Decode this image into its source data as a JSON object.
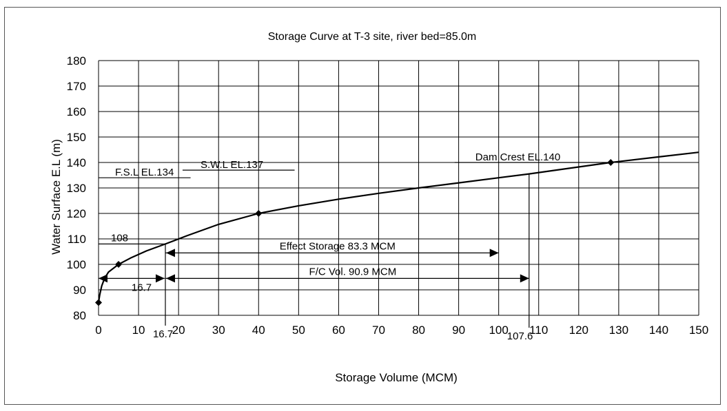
{
  "chart_data": {
    "type": "line",
    "title": "Storage Curve at T-3 site, river bed=85.0m",
    "xlabel": "Storage Volume (MCM)",
    "ylabel": "Water Surface E.L (m)",
    "xlim": [
      0,
      150
    ],
    "ylim": [
      80,
      180
    ],
    "x_ticks": [
      0,
      10,
      20,
      30,
      40,
      50,
      60,
      70,
      80,
      90,
      100,
      110,
      120,
      130,
      140,
      150
    ],
    "y_ticks": [
      80,
      90,
      100,
      110,
      120,
      130,
      140,
      150,
      160,
      170,
      180
    ],
    "grid": true,
    "legend": "none",
    "series": [
      {
        "x": [
          0,
          0.3,
          0.8,
          1.5,
          2.5,
          5,
          8,
          12,
          16.7,
          22,
          30,
          40,
          50,
          60,
          70,
          80,
          90,
          100,
          107.6,
          118,
          128,
          140,
          150
        ],
        "y": [
          85,
          88,
          91.5,
          94.5,
          97,
          100,
          102.5,
          105.3,
          108,
          111.2,
          115.7,
          120,
          123,
          125.6,
          127.9,
          130,
          132,
          134,
          135.5,
          137.8,
          140,
          142.2,
          144
        ],
        "markers": [
          {
            "x": 0,
            "y": 85
          },
          {
            "x": 5,
            "y": 100
          },
          {
            "x": 40,
            "y": 120
          },
          {
            "x": 128,
            "y": 140
          }
        ]
      }
    ],
    "annotations": {
      "fsl": {
        "text": "F.S.L EL.134",
        "y": 134,
        "x_from": 0,
        "x_to": 23
      },
      "swl": {
        "text": "S.W.L EL.137",
        "y": 137,
        "x_from": 21,
        "x_to": 49
      },
      "crest": {
        "text": "Dam Crest EL.140",
        "y": 140,
        "x_from": 89,
        "x_to": 128
      },
      "el108": {
        "text": "108",
        "y": 108,
        "x_from": 0,
        "x_to": 16.7
      },
      "effect": {
        "text": "Effect Storage 83.3 MCM",
        "y": 104.5,
        "x_from": 16.7,
        "x_to": 100
      },
      "fc": {
        "text": "F/C Vol. 90.9 MCM",
        "y": 94.5,
        "x_from": 16.7,
        "x_to": 107.6
      },
      "dead": {
        "text": "16.7",
        "y": 94.5,
        "x_from": 0,
        "x_to": 16.7
      },
      "v16": {
        "text": "16.7",
        "x": 16.7
      },
      "v107": {
        "text": "107.6",
        "x": 107.6
      }
    }
  }
}
